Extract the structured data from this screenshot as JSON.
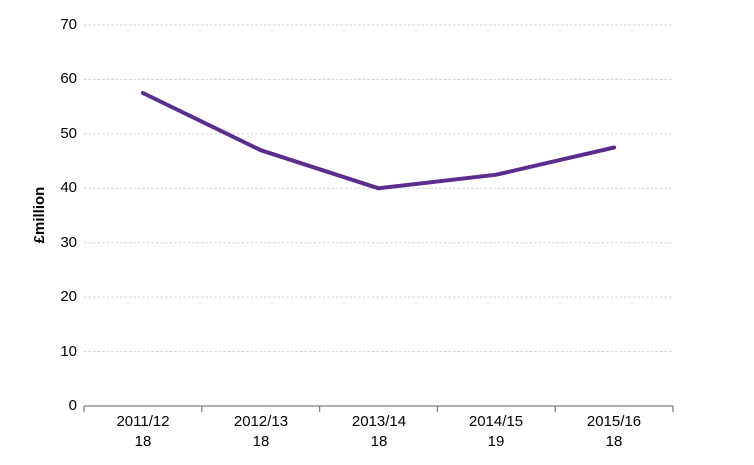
{
  "chart_data": {
    "type": "line",
    "title": "",
    "xlabel": "",
    "ylabel": "£million",
    "categories": [
      "2011/12",
      "2012/13",
      "2013/14",
      "2014/15",
      "2015/16"
    ],
    "category_sublabels": [
      "18",
      "18",
      "18",
      "19",
      "18"
    ],
    "series": [
      {
        "name": "£million",
        "values": [
          57.5,
          47,
          40,
          42.5,
          47.5
        ]
      }
    ],
    "ylim": [
      0,
      70
    ],
    "ytick_step": 10,
    "ytick_labels": [
      "0",
      "10",
      "20",
      "30",
      "40",
      "50",
      "60",
      "70"
    ],
    "grid": "horizontal-dashed",
    "legend": "none",
    "line_color": "#5b2d8e",
    "gridline_color": "#d2d2d2",
    "axis_color": "#808080",
    "text_color": "#000000",
    "background": "#ffffff"
  }
}
